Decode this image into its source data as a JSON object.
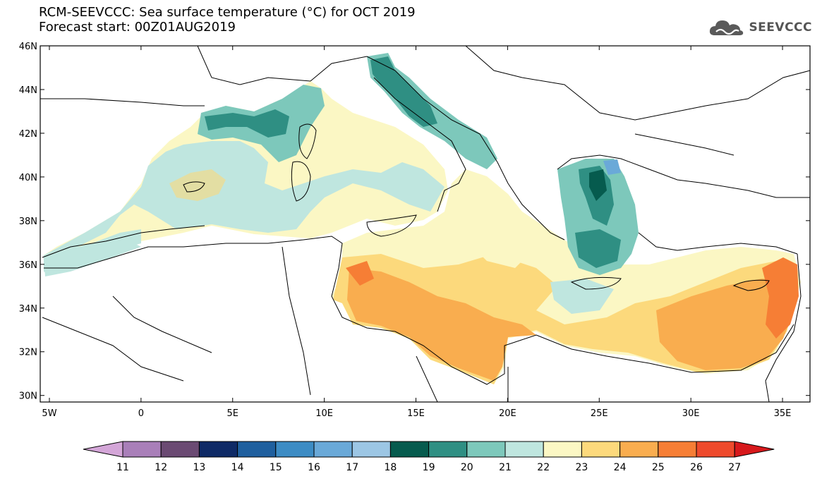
{
  "header": {
    "title": "RCM-SEEVCCC: Sea surface temperature (°C) for OCT 2019",
    "subtitle": "Forecast start: 00Z01AUG2019"
  },
  "logo": {
    "text": "SEEVCCC",
    "icon": "cloud-icon",
    "color": "#5a5a5a"
  },
  "map": {
    "lon_range": [
      -5.5,
      36.5
    ],
    "lat_range": [
      29.7,
      46
    ],
    "y_ticks": [
      "46N",
      "44N",
      "42N",
      "40N",
      "38N",
      "36N",
      "34N",
      "32N",
      "30N"
    ],
    "y_values": [
      46,
      44,
      42,
      40,
      38,
      36,
      34,
      32,
      30
    ],
    "x_ticks": [
      "5W",
      "0",
      "5E",
      "10E",
      "15E",
      "20E",
      "25E",
      "30E",
      "35E"
    ],
    "x_values": [
      -5,
      0,
      5,
      10,
      15,
      20,
      25,
      30,
      35
    ]
  },
  "colorbar": {
    "labels": [
      "11",
      "12",
      "13",
      "14",
      "15",
      "16",
      "17",
      "18",
      "19",
      "20",
      "21",
      "22",
      "23",
      "24",
      "25",
      "26",
      "27"
    ],
    "colors": [
      "#d4a6d8",
      "#a97fb9",
      "#6b4a73",
      "#0f2a66",
      "#1f5f9e",
      "#3d8cc4",
      "#6aa9d8",
      "#9cc6e4",
      "#065b4e",
      "#2f8f83",
      "#7dc8bb",
      "#bfe6df",
      "#fbf7c4",
      "#fcd97c",
      "#f9ad4f",
      "#f67e35",
      "#ee4a2c",
      "#d7191c"
    ]
  }
}
